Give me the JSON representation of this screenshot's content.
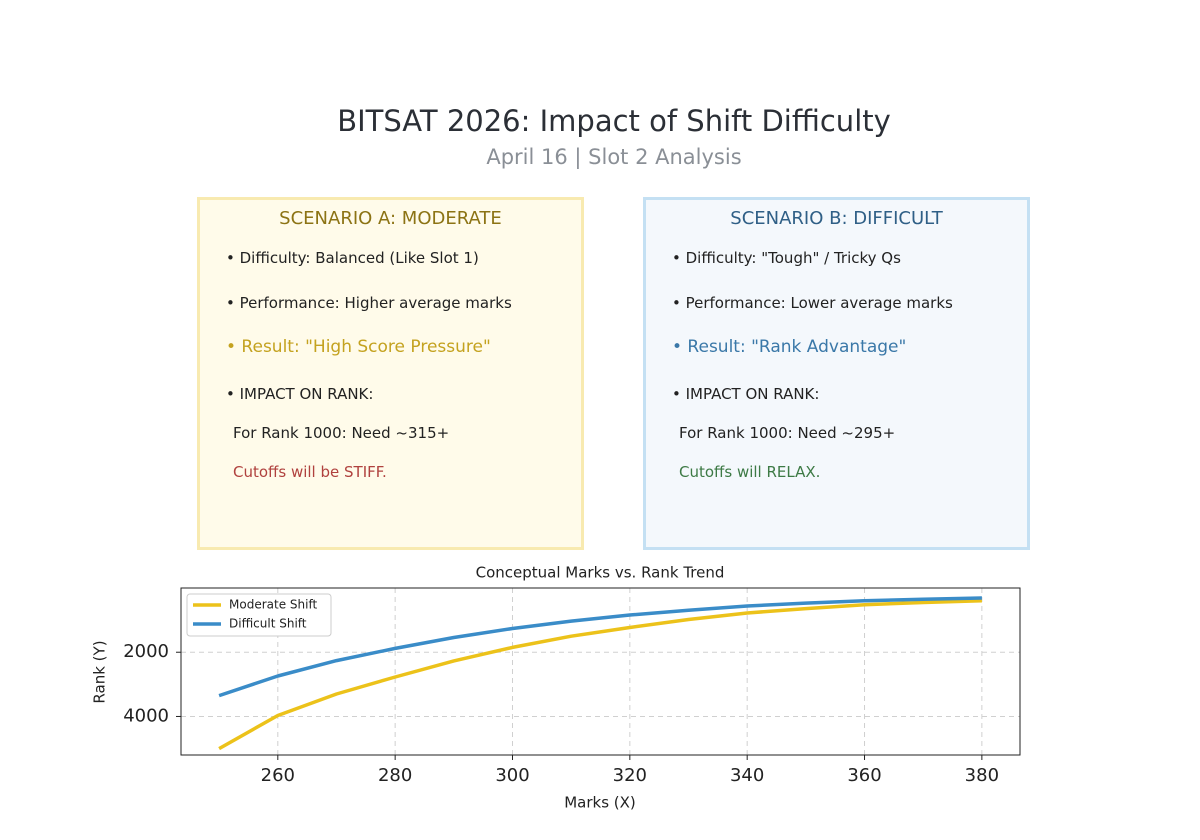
{
  "header": {
    "title": "BITSAT 2026: Impact of Shift Difficulty",
    "subtitle": "April 16 | Slot 2 Analysis"
  },
  "scenarios": [
    {
      "title": "SCENARIO A: MODERATE",
      "lines": [
        "• Difficulty: Balanced (Like Slot 1)",
        "• Performance: Higher average marks",
        "• Result: \"High Score Pressure\"",
        "• IMPACT ON RANK:",
        "For Rank 1000: Need ~315+",
        "Cutoffs will be STIFF."
      ]
    },
    {
      "title": "SCENARIO B: DIFFICULT",
      "lines": [
        "• Difficulty: \"Tough\" / Tricky Qs",
        "• Performance: Lower average marks",
        "• Result: \"Rank Advantage\"",
        "• IMPACT ON RANK:",
        "For Rank 1000: Need ~295+",
        "Cutoffs will RELAX."
      ]
    }
  ],
  "chart_data": {
    "type": "line",
    "title": "Conceptual Marks vs. Rank Trend",
    "x_label": "Marks (X)",
    "y_label": "Rank (Y)",
    "x": [
      250,
      260,
      270,
      280,
      290,
      300,
      310,
      320,
      330,
      340,
      350,
      360,
      370,
      380
    ],
    "series": [
      {
        "name": "Moderate Shift",
        "color": "#ecc21a",
        "values": [
          5000,
          3970,
          3300,
          2770,
          2270,
          1850,
          1500,
          1230,
          980,
          780,
          640,
          520,
          450,
          400
        ]
      },
      {
        "name": "Difficult Shift",
        "color": "#3a8cc8",
        "values": [
          3350,
          2740,
          2260,
          1880,
          1540,
          1260,
          1030,
          840,
          690,
          560,
          470,
          400,
          350,
          310
        ]
      }
    ],
    "xlim": [
      243.5,
      386.5
    ],
    "ylim": [
      5200,
      0
    ],
    "xticks": [
      260,
      280,
      300,
      320,
      340,
      360,
      380
    ],
    "yticks": [
      2000,
      4000
    ],
    "grid": true,
    "legend": "upper-left"
  }
}
